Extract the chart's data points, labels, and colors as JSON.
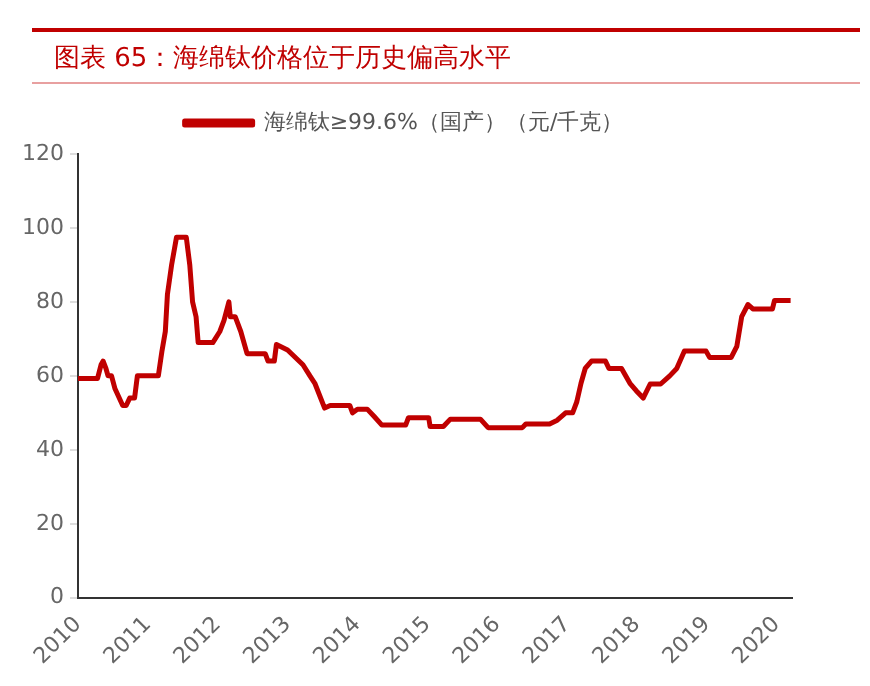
{
  "chart_data": {
    "type": "line",
    "title": "图表 65：海绵钛价格位于历史偏高水平",
    "xlim": [
      2010,
      2020.22
    ],
    "xticks": [
      2010,
      2011,
      2012,
      2013,
      2014,
      2015,
      2016,
      2017,
      2018,
      2019,
      2020
    ],
    "ylim": [
      0,
      120
    ],
    "yticks": [
      0,
      20,
      40,
      60,
      80,
      100,
      120
    ],
    "grid": false,
    "legend": "top",
    "marker": "none",
    "series": [
      {
        "name": "海绵钛≥99.6%（国产）（元/千克）",
        "color": "#c00000",
        "x": [
          2010.0,
          2010.28,
          2010.33,
          2010.36,
          2010.4,
          2010.43,
          2010.48,
          2010.53,
          2010.64,
          2010.69,
          2010.74,
          2010.81,
          2010.85,
          2011.15,
          2011.2,
          2011.25,
          2011.28,
          2011.34,
          2011.41,
          2011.55,
          2011.6,
          2011.64,
          2011.69,
          2011.72,
          2011.93,
          2012.03,
          2012.09,
          2012.16,
          2012.18,
          2012.25,
          2012.33,
          2012.42,
          2012.68,
          2012.72,
          2012.81,
          2012.84,
          2013.0,
          2013.22,
          2013.32,
          2013.39,
          2013.53,
          2013.61,
          2013.89,
          2013.93,
          2014.0,
          2014.14,
          2014.24,
          2014.35,
          2014.69,
          2014.73,
          2015.02,
          2015.04,
          2015.23,
          2015.33,
          2015.76,
          2015.87,
          2016.36,
          2016.41,
          2016.75,
          2016.86,
          2016.98,
          2017.08,
          2017.14,
          2017.2,
          2017.26,
          2017.35,
          2017.55,
          2017.6,
          2017.78,
          2017.9,
          2017.99,
          2018.09,
          2018.19,
          2018.34,
          2018.47,
          2018.57,
          2018.68,
          2018.99,
          2019.04,
          2019.35,
          2019.43,
          2019.5,
          2019.59,
          2019.66,
          2019.94,
          2019.97,
          2020.2
        ],
        "values": [
          59.3,
          59.3,
          63,
          64,
          62,
          60,
          60,
          56.5,
          52,
          52,
          54,
          54,
          60,
          60,
          66.5,
          72,
          82,
          90,
          97.5,
          97.5,
          90,
          80,
          76,
          69,
          69,
          72,
          75,
          80,
          76,
          76,
          72,
          66,
          66,
          64,
          64,
          68.5,
          67,
          63,
          60,
          58,
          51.3,
          52,
          52,
          50,
          51,
          51,
          49,
          46.7,
          46.7,
          48.7,
          48.7,
          46.3,
          46.3,
          48.3,
          48.3,
          46,
          46,
          47,
          47,
          48,
          50,
          50,
          53,
          58,
          62,
          64,
          64,
          62,
          62,
          58,
          56,
          54,
          57.8,
          57.8,
          60,
          62,
          66.7,
          66.7,
          65,
          65,
          68,
          76,
          79.3,
          78.1,
          78.1,
          80.4,
          80.4
        ]
      }
    ]
  }
}
